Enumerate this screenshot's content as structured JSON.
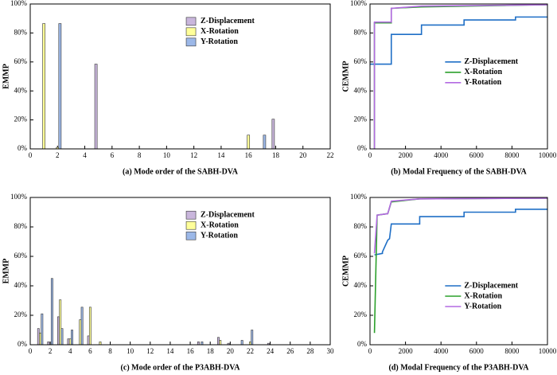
{
  "chart_data": [
    {
      "type": "bar",
      "xlabel": "(a) Mode order of the SABH-DVA",
      "ylabel": "EMMP",
      "legend": "upper center",
      "x": [
        1,
        2,
        3,
        4,
        5,
        6,
        7,
        8,
        9,
        10,
        11,
        12,
        13,
        14,
        15,
        16,
        17,
        18,
        19,
        20,
        21,
        22
      ],
      "xlim": [
        0,
        22
      ],
      "xticks": [
        0,
        2,
        4,
        6,
        8,
        10,
        12,
        14,
        16,
        18,
        20,
        22
      ],
      "ylim": [
        0,
        100
      ],
      "yticks": [
        {
          "value": 0,
          "label": "0%"
        },
        {
          "value": 20,
          "label": "20%"
        },
        {
          "value": 40,
          "label": "40%"
        },
        {
          "value": 60,
          "label": "60%"
        },
        {
          "value": 80,
          "label": "80%"
        },
        {
          "value": 100,
          "label": "100%"
        }
      ],
      "series": [
        {
          "name": "Z-Displacement",
          "color": "#c9b6dc",
          "values": [
            0,
            0,
            0,
            0,
            58.5,
            0,
            0,
            0,
            0,
            0,
            0,
            0,
            0,
            0,
            0,
            0,
            0,
            20.5,
            0,
            0,
            0,
            0
          ]
        },
        {
          "name": "X-Rotation",
          "color": "#ffff99",
          "values": [
            86.5,
            1,
            0,
            0,
            0,
            0,
            0,
            0,
            0,
            0,
            0,
            0,
            0,
            0,
            0,
            9.5,
            0,
            0,
            0,
            0,
            0,
            0
          ]
        },
        {
          "name": "Y-Rotation",
          "color": "#9cb8e8",
          "values": [
            0,
            86.5,
            0,
            0,
            0,
            0,
            0,
            0,
            0,
            0,
            0,
            0,
            0,
            0,
            0,
            0,
            9.5,
            0,
            0,
            0,
            0,
            0
          ]
        }
      ]
    },
    {
      "type": "line",
      "xlabel": "(b) Modal Frequency of the SABH-DVA",
      "ylabel": "CEMMP",
      "legend": "center right",
      "xlim": [
        0,
        10000
      ],
      "xticks": [
        0,
        2000,
        4000,
        6000,
        8000,
        10000
      ],
      "ylim": [
        0,
        100
      ],
      "yticks": [
        {
          "value": 0,
          "label": "0%"
        },
        {
          "value": 20,
          "label": "20%"
        },
        {
          "value": 40,
          "label": "40%"
        },
        {
          "value": 60,
          "label": "60%"
        },
        {
          "value": 80,
          "label": "80%"
        },
        {
          "value": 100,
          "label": "100%"
        }
      ],
      "series": [
        {
          "name": "Z-Displacement",
          "color": "#1f6fc6",
          "x": [
            0,
            1200,
            1200,
            2900,
            2900,
            5300,
            5300,
            8200,
            8200,
            10000
          ],
          "values": [
            58.5,
            58.5,
            79,
            79,
            85.5,
            85.5,
            89,
            89,
            91,
            91
          ]
        },
        {
          "name": "X-Rotation",
          "color": "#2ca02c",
          "x": [
            250,
            250,
            1200,
            1200,
            2900,
            10000
          ],
          "values": [
            0,
            87,
            87,
            97,
            98,
            99.5
          ]
        },
        {
          "name": "Y-Rotation",
          "color": "#b36ae2",
          "x": [
            250,
            250,
            1200,
            1200,
            2900,
            10000
          ],
          "values": [
            0,
            87.5,
            87.5,
            97,
            98.5,
            99.5
          ]
        }
      ]
    },
    {
      "type": "bar",
      "xlabel": "(c) Mode order of the P3ABH-DVA",
      "ylabel": "EMMP",
      "legend": "upper center",
      "x": [
        1,
        2,
        3,
        4,
        5,
        6,
        7,
        8,
        9,
        10,
        11,
        12,
        13,
        14,
        15,
        16,
        17,
        18,
        19,
        20,
        21,
        22,
        23,
        24,
        25,
        26,
        27,
        28,
        29
      ],
      "xlim": [
        0,
        30
      ],
      "xticks": [
        0,
        2,
        4,
        6,
        8,
        10,
        12,
        14,
        16,
        18,
        20,
        22,
        24,
        26,
        28,
        30
      ],
      "ylim": [
        0,
        100
      ],
      "yticks": [
        {
          "value": 0,
          "label": "0%"
        },
        {
          "value": 20,
          "label": "20%"
        },
        {
          "value": 40,
          "label": "40%"
        },
        {
          "value": 60,
          "label": "60%"
        },
        {
          "value": 80,
          "label": "80%"
        },
        {
          "value": 100,
          "label": "100%"
        }
      ],
      "series": [
        {
          "name": "Z-Displacement",
          "color": "#c9b6dc",
          "values": [
            11,
            2,
            19,
            4,
            0,
            6,
            0,
            0,
            0,
            0,
            0,
            0,
            0,
            0,
            0,
            0,
            2,
            0,
            5,
            1,
            0,
            0,
            0,
            1,
            0,
            0,
            0,
            0,
            0
          ]
        },
        {
          "name": "X-Rotation",
          "color": "#ffff99",
          "values": [
            8,
            0,
            30.5,
            4,
            17,
            25.5,
            2,
            0,
            0,
            0,
            0,
            0,
            0,
            0,
            0,
            0,
            0,
            0,
            3,
            0,
            0,
            2,
            0,
            0,
            0,
            0,
            0,
            0,
            0
          ]
        },
        {
          "name": "Y-Rotation",
          "color": "#9cb8e8",
          "values": [
            21,
            45,
            11,
            10,
            25.5,
            0,
            0,
            0,
            0,
            0,
            0,
            0,
            0,
            0,
            0,
            0,
            2,
            0,
            0,
            0,
            3,
            10,
            0,
            0,
            0,
            0,
            0,
            0,
            0
          ]
        }
      ]
    },
    {
      "type": "line",
      "xlabel": "(d)  Modal Frequency of the P3ABH-DVA",
      "ylabel": "CEMMP",
      "legend": "lower right",
      "xlim": [
        0,
        10000
      ],
      "xticks": [
        0,
        2000,
        4000,
        6000,
        8000,
        10000
      ],
      "ylim": [
        0,
        100
      ],
      "yticks": [
        {
          "value": 0,
          "label": "0%"
        },
        {
          "value": 20,
          "label": "20%"
        },
        {
          "value": 40,
          "label": "40%"
        },
        {
          "value": 60,
          "label": "60%"
        },
        {
          "value": 80,
          "label": "80%"
        },
        {
          "value": 100,
          "label": "100%"
        }
      ],
      "series": [
        {
          "name": "Z-Displacement",
          "color": "#1f6fc6",
          "x": [
            250,
            700,
            700,
            1000,
            1100,
            1200,
            2800,
            2800,
            5300,
            5300,
            8200,
            8200,
            10000
          ],
          "values": [
            61,
            62,
            63,
            71,
            72,
            82,
            82,
            87,
            87,
            90,
            90,
            92,
            92
          ]
        },
        {
          "name": "X-Rotation",
          "color": "#2ca02c",
          "x": [
            250,
            400,
            1000,
            1200,
            2800,
            10000
          ],
          "values": [
            8,
            88,
            89,
            97,
            99,
            99.5
          ]
        },
        {
          "name": "Y-Rotation",
          "color": "#b36ae2",
          "x": [
            250,
            400,
            1000,
            1200,
            2800,
            10000
          ],
          "values": [
            62,
            88,
            89,
            97.5,
            99,
            99.5
          ]
        }
      ]
    }
  ]
}
